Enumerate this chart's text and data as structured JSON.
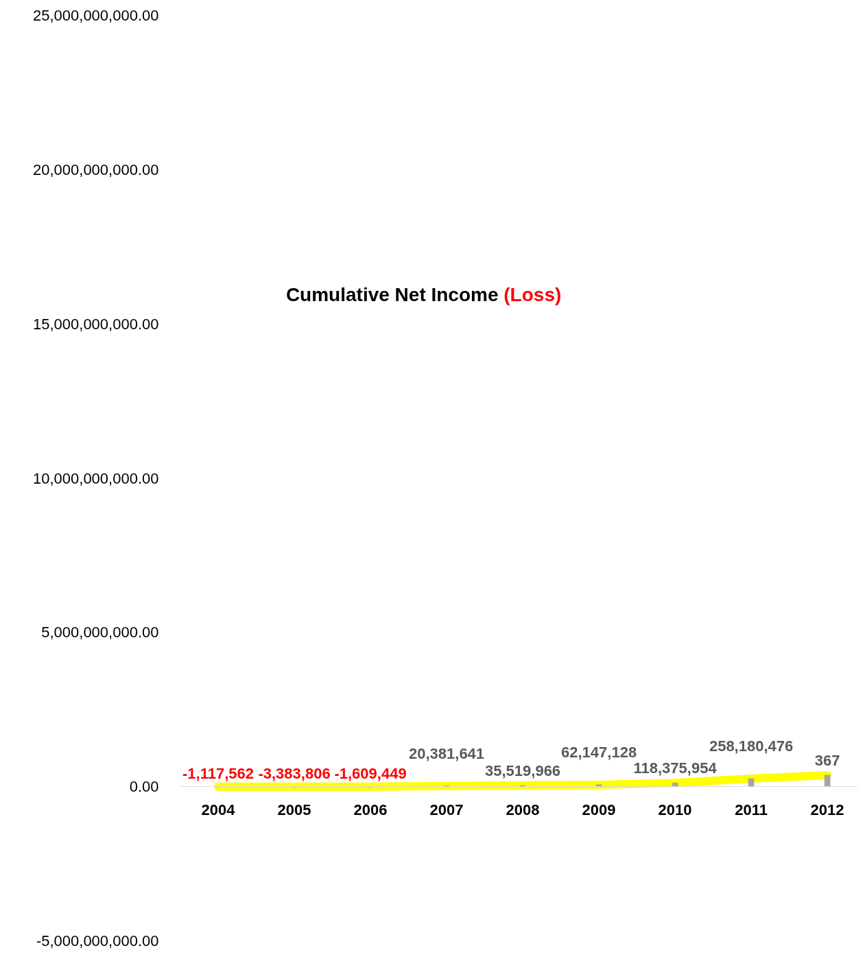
{
  "chart_data": {
    "type": "bar",
    "title": "Cumulative Net Income (Loss)",
    "categories": [
      "2004",
      "2005",
      "2006",
      "2007",
      "2008",
      "2009",
      "2010",
      "2011",
      "2012"
    ],
    "series": [
      {
        "color": "#a6a6a6",
        "values": [
          -1117562,
          -3383806,
          -1609449,
          20381641,
          35519966,
          62147128,
          118375954,
          258180476,
          370000000
        ],
        "value_labels": [
          "-1,117,562",
          "-3,383,806",
          "-1,609,449",
          "20,381,641",
          "35,519,966",
          "62,147,128",
          "118,375,954",
          "258,180,476",
          null
        ]
      },
      {
        "type": "line",
        "color": "#ffff00",
        "line_style": "solid",
        "values": [
          0,
          0,
          0,
          20000000,
          40000000,
          60000000,
          120000000,
          260000000,
          370000000
        ]
      }
    ],
    "annotations": [
      {
        "text": "367",
        "x": "2012",
        "y": 370000000
      }
    ],
    "ylim": [
      -5000000000,
      25000000000
    ],
    "yticks": [
      {
        "value": -5000000000,
        "label": "-5,000,000,000.00"
      },
      {
        "value": 0,
        "label": "0.00"
      },
      {
        "value": 5000000000,
        "label": "5,000,000,000.00"
      },
      {
        "value": 10000000000,
        "label": "10,000,000,000.00"
      },
      {
        "value": 15000000000,
        "label": "15,000,000,000.00"
      },
      {
        "value": 20000000000,
        "label": "20,000,000,000.00"
      },
      {
        "value": 25000000000,
        "label": "25,000,000,000.00"
      }
    ],
    "grid": false
  }
}
